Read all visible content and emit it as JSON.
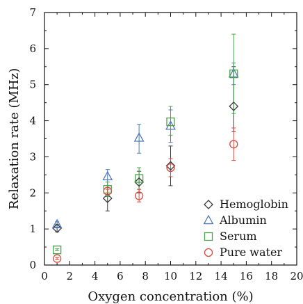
{
  "chart_data": {
    "type": "scatter",
    "title": "",
    "xlabel": "Oxygen concentration (%)",
    "ylabel": "Relaxation rate (MHz)",
    "xlim": [
      0,
      20
    ],
    "ylim": [
      0,
      7
    ],
    "xticks": [
      0,
      2,
      4,
      6,
      8,
      10,
      12,
      14,
      16,
      18,
      20
    ],
    "yticks": [
      0,
      1,
      2,
      3,
      4,
      5,
      6,
      7
    ],
    "grid": false,
    "legend_position": "bottom-right",
    "series": [
      {
        "name": "Hemoglobin",
        "marker": "diamond",
        "color": "#3a3a3a",
        "points": [
          {
            "x": 1,
            "y": 1.02,
            "err_low": 0.92,
            "err_high": 1.12
          },
          {
            "x": 5,
            "y": 1.85,
            "err_low": 1.5,
            "err_high": 2.2
          },
          {
            "x": 7.5,
            "y": 2.3,
            "err_low": 2.0,
            "err_high": 2.6
          },
          {
            "x": 10,
            "y": 2.75,
            "err_low": 2.2,
            "err_high": 3.3
          },
          {
            "x": 15,
            "y": 4.4,
            "err_low": 3.7,
            "err_high": 5.5
          }
        ]
      },
      {
        "name": "Albumin",
        "marker": "triangle",
        "color": "#4f79b8",
        "points": [
          {
            "x": 1,
            "y": 1.12,
            "err_low": 1.05,
            "err_high": 1.2
          },
          {
            "x": 5,
            "y": 2.45,
            "err_low": 2.2,
            "err_high": 2.65
          },
          {
            "x": 7.5,
            "y": 3.52,
            "err_low": 3.1,
            "err_high": 3.9
          },
          {
            "x": 10,
            "y": 3.85,
            "err_low": 3.4,
            "err_high": 4.3
          },
          {
            "x": 15,
            "y": 5.3,
            "err_low": 5.0,
            "err_high": 5.6
          }
        ]
      },
      {
        "name": "Serum",
        "marker": "square",
        "color": "#4aa34a",
        "points": [
          {
            "x": 1,
            "y": 0.42,
            "err_low": 0.4,
            "err_high": 0.45
          },
          {
            "x": 5,
            "y": 2.1,
            "err_low": 1.9,
            "err_high": 2.3
          },
          {
            "x": 7.5,
            "y": 2.4,
            "err_low": 2.1,
            "err_high": 2.7
          },
          {
            "x": 10,
            "y": 3.97,
            "err_low": 3.6,
            "err_high": 4.4
          },
          {
            "x": 15,
            "y": 5.3,
            "err_low": 4.2,
            "err_high": 6.4
          }
        ]
      },
      {
        "name": "Pure water",
        "marker": "circle",
        "color": "#d9493d",
        "points": [
          {
            "x": 1,
            "y": 0.18,
            "err_low": 0.15,
            "err_high": 0.21
          },
          {
            "x": 5,
            "y": 2.05,
            "err_low": 2.0,
            "err_high": 2.1
          },
          {
            "x": 7.5,
            "y": 1.92,
            "err_low": 1.75,
            "err_high": 2.1
          },
          {
            "x": 10,
            "y": 2.7,
            "err_low": 2.45,
            "err_high": 2.95
          },
          {
            "x": 15,
            "y": 3.35,
            "err_low": 2.9,
            "err_high": 3.8
          }
        ]
      }
    ]
  }
}
